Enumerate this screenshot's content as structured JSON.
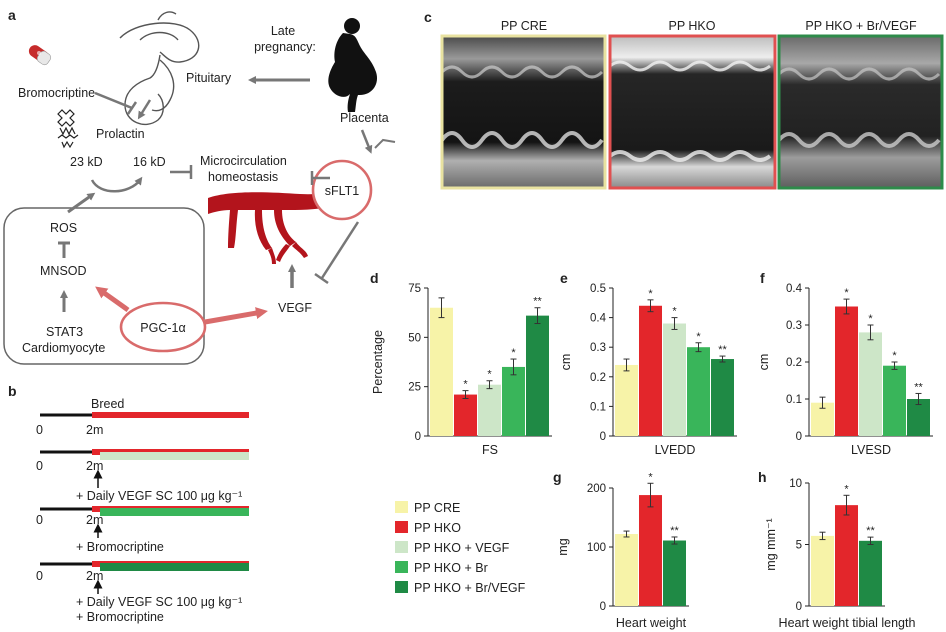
{
  "panels": {
    "a": "a",
    "b": "b",
    "c": "c",
    "d": "d",
    "e": "e",
    "f": "f",
    "g": "g",
    "h": "h"
  },
  "pathway": {
    "bromocriptine": "Bromocriptine",
    "pituitary": "Pituitary",
    "late_pregnancy": [
      "Late",
      "pregnancy:"
    ],
    "prolactin": "Prolactin",
    "kd23": "23 kD",
    "kd16": "16 kD",
    "microcirculation": [
      "Microcirculation",
      "homeostasis"
    ],
    "placenta": "Placenta",
    "sflt1": "sFLT1",
    "ros": "ROS",
    "mnsod": "MNSOD",
    "stat3": "STAT3",
    "cardiomyocyte": "Cardiomyocyte",
    "pgc1a": "PGC-1α",
    "vegf": "VEGF"
  },
  "timeline": {
    "breed": "Breed",
    "zero": "0",
    "twom": "2m",
    "t2_note": "+ Daily VEGF SC 100 μg kg⁻¹",
    "t3_note": "+ Bromocriptine",
    "t4_note1": "+ Daily VEGF SC 100 μg kg⁻¹",
    "t4_note2": "+ Bromocriptine"
  },
  "echo": {
    "titles": [
      "PP CRE",
      "PP HKO",
      "PP HKO + Br/VEGF"
    ],
    "border_colors": [
      "#e8e2a0",
      "#e05050",
      "#2e8b4a"
    ]
  },
  "legend": {
    "items": [
      {
        "label": "PP CRE",
        "color": "#f7f3a8"
      },
      {
        "label": "PP HKO",
        "color": "#e3262b"
      },
      {
        "label": "PP HKO + VEGF",
        "color": "#cde6c8"
      },
      {
        "label": "PP HKO + Br",
        "color": "#39b55a"
      },
      {
        "label": "PP HKO + Br/VEGF",
        "color": "#1f8a45"
      }
    ]
  },
  "chart_data": [
    {
      "panel": "d",
      "type": "bar",
      "categories": [
        "PP CRE",
        "PP HKO",
        "PP HKO + VEGF",
        "PP HKO + Br",
        "PP HKO + Br/VEGF"
      ],
      "values": [
        65,
        21,
        26,
        35,
        61
      ],
      "errors": [
        5,
        2,
        2,
        4,
        4
      ],
      "sig": [
        "",
        "*",
        "*",
        "*",
        "**"
      ],
      "ylabel": "Percentage",
      "xlabel": "FS",
      "ylim": [
        0,
        75
      ],
      "yticks": [
        0,
        25,
        50,
        75
      ]
    },
    {
      "panel": "e",
      "type": "bar",
      "categories": [
        "PP CRE",
        "PP HKO",
        "PP HKO + VEGF",
        "PP HKO + Br",
        "PP HKO + Br/VEGF"
      ],
      "values": [
        0.24,
        0.44,
        0.38,
        0.3,
        0.26
      ],
      "errors": [
        0.02,
        0.02,
        0.02,
        0.015,
        0.01
      ],
      "sig": [
        "",
        "*",
        "*",
        "*",
        "**"
      ],
      "ylabel": "cm",
      "xlabel": "LVEDD",
      "ylim": [
        0,
        0.5
      ],
      "yticks": [
        0,
        0.1,
        0.2,
        0.3,
        0.4,
        0.5
      ]
    },
    {
      "panel": "f",
      "type": "bar",
      "categories": [
        "PP CRE",
        "PP HKO",
        "PP HKO + VEGF",
        "PP HKO + Br",
        "PP HKO + Br/VEGF"
      ],
      "values": [
        0.09,
        0.35,
        0.28,
        0.19,
        0.1
      ],
      "errors": [
        0.015,
        0.02,
        0.02,
        0.01,
        0.015
      ],
      "sig": [
        "",
        "*",
        "*",
        "*",
        "**"
      ],
      "ylabel": "cm",
      "xlabel": "LVESD",
      "ylim": [
        0,
        0.4
      ],
      "yticks": [
        0,
        0.1,
        0.2,
        0.3,
        0.4
      ]
    },
    {
      "panel": "g",
      "type": "bar",
      "categories": [
        "PP CRE",
        "PP HKO",
        "PP HKO + Br/VEGF"
      ],
      "values": [
        122,
        188,
        111
      ],
      "errors": [
        5,
        20,
        6
      ],
      "sig": [
        "",
        "*",
        "**"
      ],
      "ylabel": "mg",
      "xlabel": "Heart weight",
      "ylim": [
        0,
        200
      ],
      "yticks": [
        0,
        100,
        200
      ]
    },
    {
      "panel": "h",
      "type": "bar",
      "categories": [
        "PP CRE",
        "PP HKO",
        "PP HKO + Br/VEGF"
      ],
      "values": [
        5.7,
        8.2,
        5.3
      ],
      "errors": [
        0.3,
        0.8,
        0.3
      ],
      "sig": [
        "",
        "*",
        "**"
      ],
      "ylabel": "mg mm⁻¹",
      "xlabel": "Heart weight tibial length",
      "ylim": [
        0,
        10
      ],
      "yticks": [
        0,
        5,
        10
      ]
    }
  ]
}
